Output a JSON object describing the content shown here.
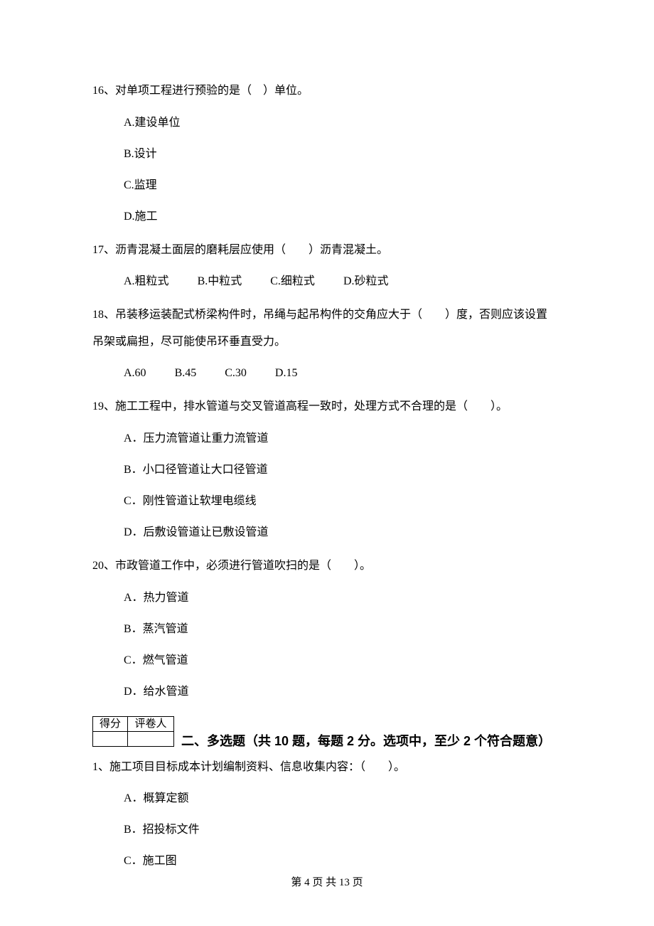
{
  "q16": {
    "stem": "16、对单项工程进行预验的是（　）单位。",
    "opts": [
      "A.建设单位",
      "B.设计",
      "C.监理",
      "D.施工"
    ]
  },
  "q17": {
    "stem": "17、沥青混凝土面层的磨耗层应使用（　　）沥青混凝土。",
    "opts": [
      "A.粗粒式",
      "B.中粒式",
      "C.细粒式",
      "D.砂粒式"
    ]
  },
  "q18": {
    "stem_l1": "18、吊装移运装配式桥梁构件时，吊绳与起吊构件的交角应大于（　　）度，否则应该设置",
    "stem_l2": "吊架或扁担，尽可能使吊环垂直受力。",
    "opts": [
      "A.60",
      "B.45",
      "C.30",
      "D.15"
    ]
  },
  "q19": {
    "stem": "19、施工工程中，排水管道与交叉管道高程一致时，处理方式不合理的是（　　）。",
    "opts": [
      "A．压力流管道让重力流管道",
      "B．小口径管道让大口径管道",
      "C．刚性管道让软埋电缆线",
      "D．后敷设管道让已敷设管道"
    ]
  },
  "q20": {
    "stem": "20、市政管道工作中，必须进行管道吹扫的是（　　）。",
    "opts": [
      "A．热力管道",
      "B．蒸汽管道",
      "C．燃气管道",
      "D．给水管道"
    ]
  },
  "score_table": {
    "h1": "得分",
    "h2": "评卷人"
  },
  "section2_title": "二、多选题（共 10 题，每题 2 分。选项中，至少 2 个符合题意）",
  "mcq1": {
    "stem": "1、施工项目目标成本计划编制资料、信息收集内容：（　　）。",
    "opts": [
      "A．概算定额",
      "B．招投标文件",
      "C．施工图"
    ]
  },
  "footer": "第 4 页 共 13 页"
}
